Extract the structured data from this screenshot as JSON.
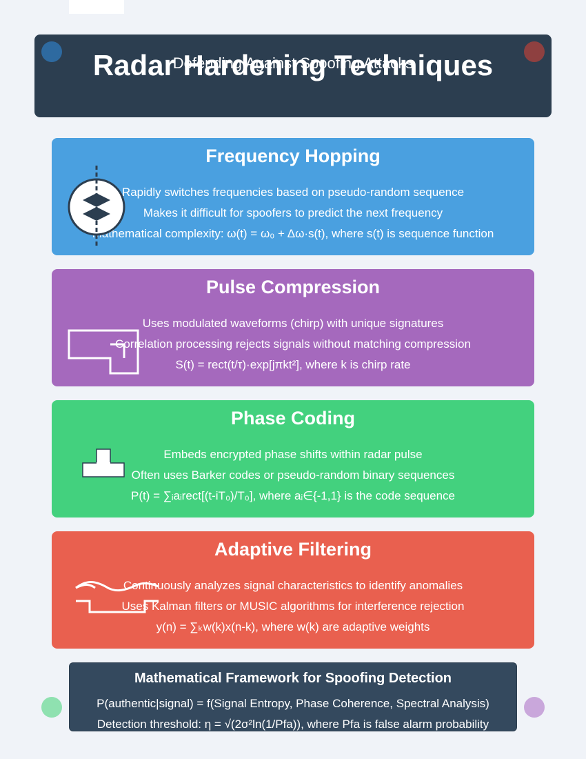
{
  "header": {
    "title": "Radar Hardening Techniques",
    "subtitle": "Defending Against Spoofing Attacks"
  },
  "colors": {
    "background": "#f0f3f8",
    "header": "#2c3e50",
    "frequency_hopping": "#4aa0e0",
    "pulse_compression": "#a569bd",
    "phase_coding": "#43d17e",
    "adaptive_filtering": "#e9604f",
    "framework": "#34495e"
  },
  "techniques": [
    {
      "title": "Frequency Hopping",
      "icon": "frequency-hop-icon",
      "lines": [
        "Rapidly switches frequencies based on pseudo-random sequence",
        "Makes it difficult for spoofers to predict the next frequency",
        "Mathematical complexity: ω(t) = ω₀ + Δω·s(t), where s(t) is sequence function"
      ]
    },
    {
      "title": "Pulse Compression",
      "icon": "pulse-waveform-icon",
      "lines": [
        "Uses modulated waveforms (chirp) with unique signatures",
        "Correlation processing rejects signals without matching compression",
        "S(t) = rect(t/τ)·exp[jπkt²], where k is chirp rate"
      ]
    },
    {
      "title": "Phase Coding",
      "icon": "phase-code-icon",
      "lines": [
        "Embeds encrypted phase shifts within radar pulse",
        "Often uses Barker codes or pseudo-random binary sequences",
        "P(t) = ∑ᵢaᵢrect[(t-iT₀)/T₀], where aᵢ∈{-1,1} is the code sequence"
      ]
    },
    {
      "title": "Adaptive Filtering",
      "icon": "adaptive-filter-icon",
      "lines": [
        "Continuously analyzes signal characteristics to identify anomalies",
        "Uses Kalman filters or MUSIC algorithms for interference rejection",
        "y(n) = ∑ₖw(k)x(n-k), where w(k) are adaptive weights"
      ]
    }
  ],
  "framework": {
    "title": "Mathematical Framework for Spoofing Detection",
    "lines": [
      "P(authentic|signal) = f(Signal Entropy, Phase Coherence, Spectral Analysis)",
      "Detection threshold: η = √(2σ²ln(1/Pfa)), where Pfa is false alarm probability"
    ]
  }
}
